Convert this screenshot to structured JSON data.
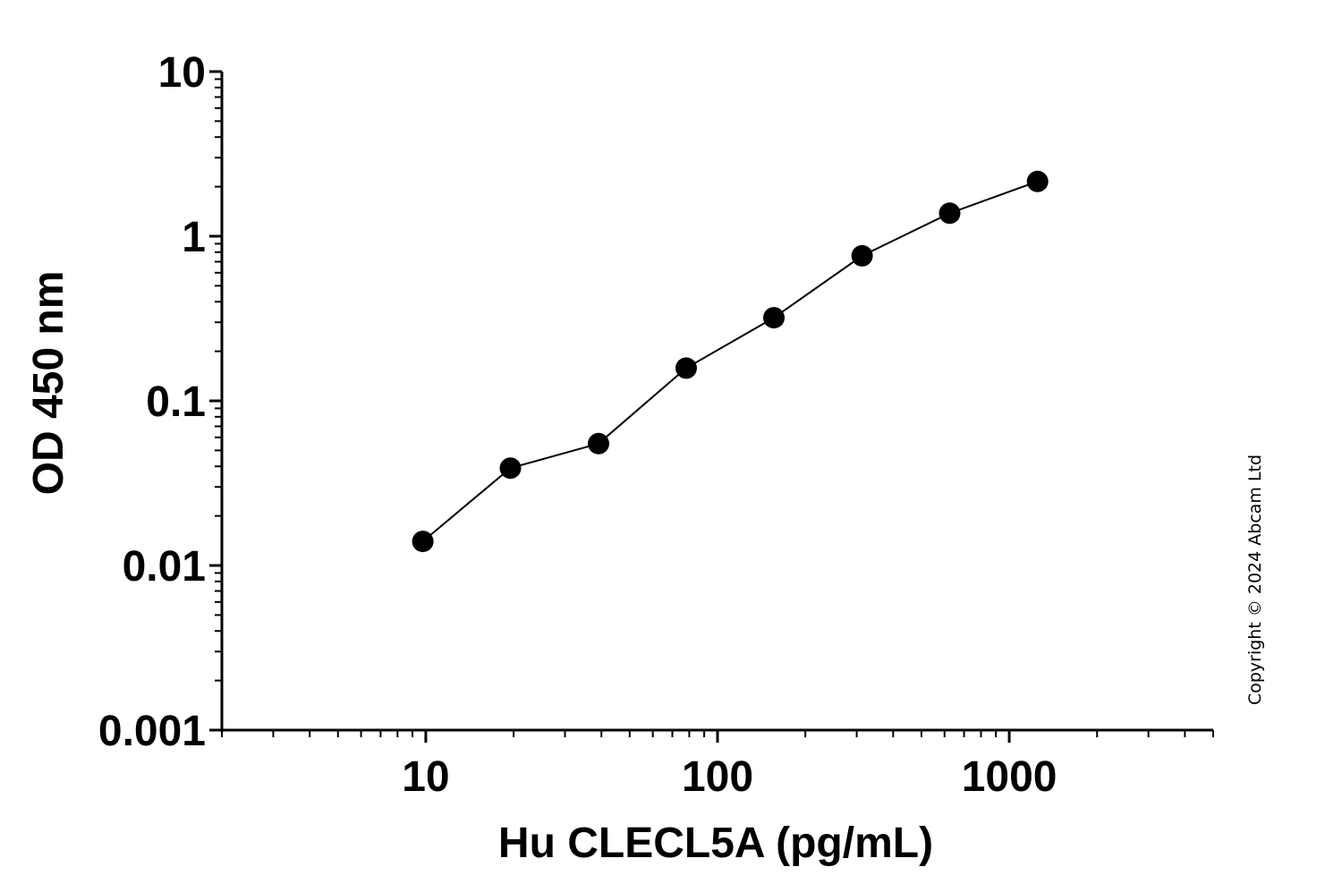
{
  "chart_data": {
    "type": "line",
    "xscale": "log",
    "yscale": "log",
    "xlabel": "Hu CLECL5A (pg/mL)",
    "ylabel": "OD 450 nm",
    "xlim": [
      2,
      5000
    ],
    "ylim": [
      0.001,
      10
    ],
    "x_ticks": [
      {
        "value": 10,
        "label": "10"
      },
      {
        "value": 100,
        "label": "100"
      },
      {
        "value": 1000,
        "label": "1000"
      }
    ],
    "y_ticks": [
      {
        "value": 0.001,
        "label": "0.001"
      },
      {
        "value": 0.01,
        "label": "0.01"
      },
      {
        "value": 0.1,
        "label": "0.1"
      },
      {
        "value": 1,
        "label": "1"
      },
      {
        "value": 10,
        "label": "10"
      }
    ],
    "grid": false,
    "legend": "none",
    "series": [
      {
        "marker": "circle",
        "color": "#000000",
        "x": [
          9.77,
          19.5,
          39.1,
          78.1,
          156,
          313,
          625,
          1250
        ],
        "y": [
          0.014,
          0.039,
          0.055,
          0.158,
          0.32,
          0.76,
          1.38,
          2.15
        ]
      }
    ]
  },
  "watermark": "Copyright © 2024 Abcam  Ltd"
}
